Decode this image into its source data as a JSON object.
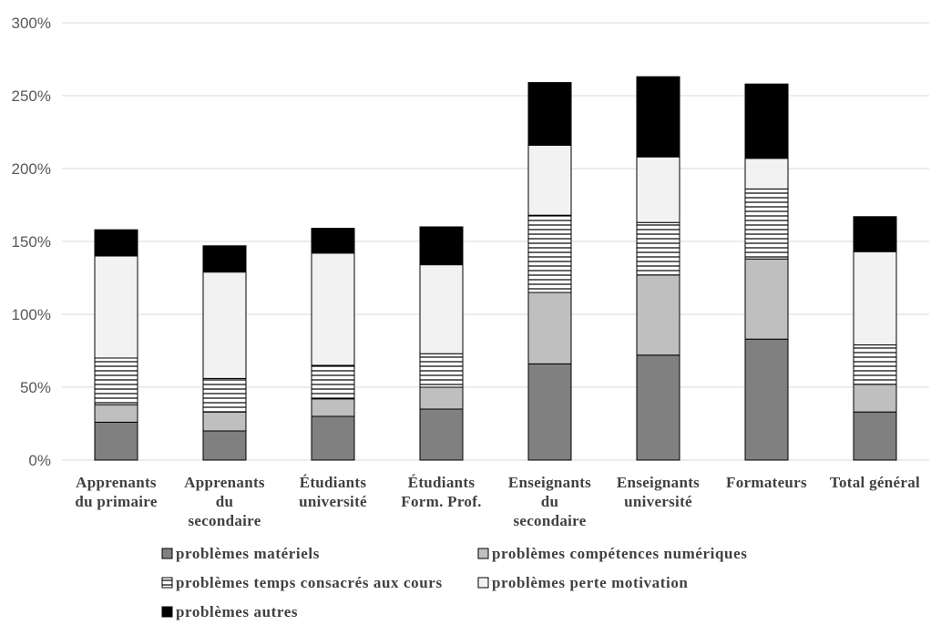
{
  "chart_data": {
    "type": "bar",
    "stacked": true,
    "title": "",
    "xlabel": "",
    "ylabel": "",
    "ylim": [
      0,
      300
    ],
    "y_ticks": [
      "0%",
      "50%",
      "100%",
      "150%",
      "200%",
      "250%",
      "300%"
    ],
    "y_tick_values": [
      0,
      50,
      100,
      150,
      200,
      250,
      300
    ],
    "grid": true,
    "legend_position": "bottom",
    "categories": [
      [
        "Apprenants",
        "du primaire"
      ],
      [
        "Apprenants",
        "du",
        "secondaire"
      ],
      [
        "Étudiants",
        "université"
      ],
      [
        "Étudiants",
        "Form. Prof."
      ],
      [
        "Enseignants",
        "du",
        "secondaire"
      ],
      [
        "Enseignants",
        "université"
      ],
      [
        "Formateurs"
      ],
      [
        "Total général"
      ]
    ],
    "series": [
      {
        "name": "problèmes matériels",
        "pattern": "solid",
        "color": "#808080",
        "values": [
          26,
          20,
          30,
          35,
          66,
          72,
          83,
          33
        ]
      },
      {
        "name": "problèmes compétences numériques",
        "pattern": "solid",
        "color": "#bfbfbf",
        "values": [
          12,
          13,
          12,
          15,
          49,
          55,
          55,
          19
        ]
      },
      {
        "name": "problèmes temps consacrés aux cours",
        "pattern": "horizontal-lines",
        "color": "#ffffff",
        "values": [
          32,
          23,
          23,
          23,
          53,
          36,
          48,
          27
        ]
      },
      {
        "name": "problèmes perte motivation",
        "pattern": "solid",
        "color": "#f2f2f2",
        "values": [
          70,
          73,
          77,
          61,
          48,
          45,
          21,
          64
        ]
      },
      {
        "name": "problèmes autres",
        "pattern": "solid",
        "color": "#000000",
        "values": [
          18,
          18,
          17,
          26,
          43,
          55,
          51,
          24
        ]
      }
    ]
  }
}
